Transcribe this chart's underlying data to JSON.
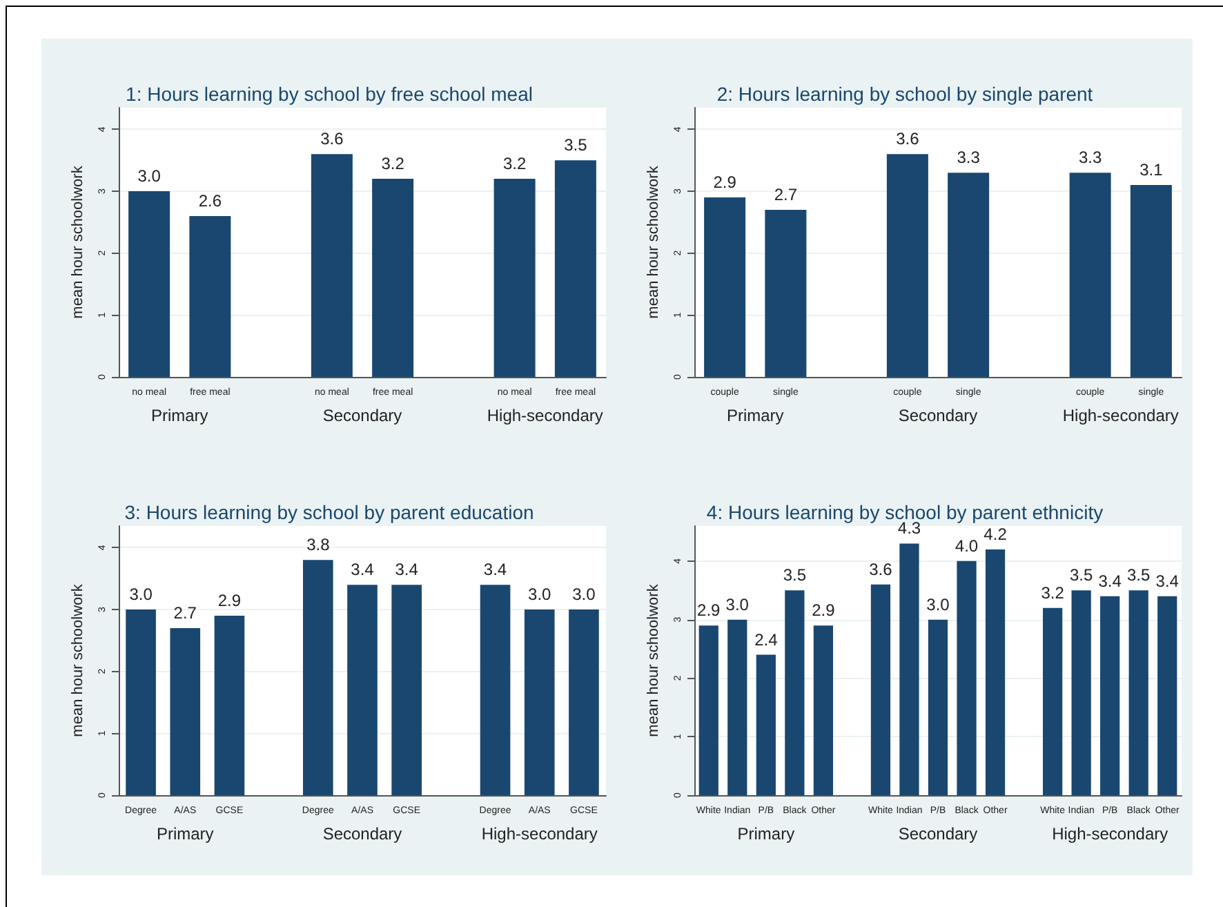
{
  "chart_data": [
    {
      "type": "bar",
      "title": "1: Hours learning by school by free school meal",
      "ylabel": "mean hour schoolwork",
      "categories": [
        "no meal",
        "free meal",
        null,
        "no meal",
        "free meal",
        null,
        "no meal",
        "free meal"
      ],
      "values": [
        3.0,
        2.6,
        null,
        3.6,
        3.2,
        null,
        3.2,
        3.5
      ],
      "value_labels": [
        "3.0",
        "2.6",
        null,
        "3.6",
        "3.2",
        null,
        "3.2",
        "3.5"
      ],
      "color": "#1a476f",
      "ylim": [
        0,
        4.35
      ],
      "yticks": [
        0,
        1,
        2,
        3,
        4
      ],
      "grid": "y",
      "annotations": [
        "Primary",
        "Secondary",
        "High-secondary"
      ]
    },
    {
      "type": "bar",
      "title": "2: Hours learning by school by single parent",
      "ylabel": "mean hour schoolwork",
      "categories": [
        "couple",
        "single",
        null,
        "couple",
        "single",
        null,
        "couple",
        "single"
      ],
      "values": [
        2.9,
        2.7,
        null,
        3.6,
        3.3,
        null,
        3.3,
        3.1
      ],
      "value_labels": [
        "2.9",
        "2.7",
        null,
        "3.6",
        "3.3",
        null,
        "3.3",
        "3.1"
      ],
      "color": "#1a476f",
      "ylim": [
        0,
        4.35
      ],
      "yticks": [
        0,
        1,
        2,
        3,
        4
      ],
      "grid": "y",
      "annotations": [
        "Primary",
        "Secondary",
        "High-secondary"
      ]
    },
    {
      "type": "bar",
      "title": "3: Hours learning by school by parent education",
      "ylabel": "mean hour schoolwork",
      "categories": [
        "Degree",
        "A/AS",
        "GCSE",
        null,
        "Degree",
        "A/AS",
        "GCSE",
        null,
        "Degree",
        "A/AS",
        "GCSE"
      ],
      "values": [
        3.0,
        2.7,
        2.9,
        null,
        3.8,
        3.4,
        3.4,
        null,
        3.4,
        3.0,
        3.0
      ],
      "value_labels": [
        "3.0",
        "2.7",
        "2.9",
        null,
        "3.8",
        "3.4",
        "3.4",
        null,
        "3.4",
        "3.0",
        "3.0"
      ],
      "color": "#1a476f",
      "ylim": [
        0,
        4.35
      ],
      "yticks": [
        0,
        1,
        2,
        3,
        4
      ],
      "grid": "y",
      "annotations": [
        "Primary",
        "Secondary",
        "High-secondary"
      ]
    },
    {
      "type": "bar",
      "title": "4: Hours learning by school by parent ethnicity",
      "ylabel": "mean hour schoolwork",
      "categories": [
        "White",
        "Indian",
        "P/B",
        "Black",
        "Other",
        null,
        "White",
        "Indian",
        "P/B",
        "Black",
        "Other",
        null,
        "White",
        "Indian",
        "P/B",
        "Black",
        "Other"
      ],
      "values": [
        2.9,
        3.0,
        2.4,
        3.5,
        2.9,
        null,
        3.6,
        4.3,
        3.0,
        4.0,
        4.2,
        null,
        3.2,
        3.5,
        3.4,
        3.5,
        3.4
      ],
      "value_labels": [
        "2.9",
        "3.0",
        "2.4",
        "3.5",
        "2.9",
        null,
        "3.6",
        "4.3",
        "3.0",
        "4.0",
        "4.2",
        null,
        "3.2",
        "3.5",
        "3.4",
        "3.5",
        "3.4"
      ],
      "color": "#1a476f",
      "ylim": [
        0,
        4.6
      ],
      "yticks": [
        0,
        1,
        2,
        3,
        4
      ],
      "grid": "y",
      "annotations": [
        "Primary",
        "Secondary",
        "High-secondary"
      ]
    }
  ]
}
